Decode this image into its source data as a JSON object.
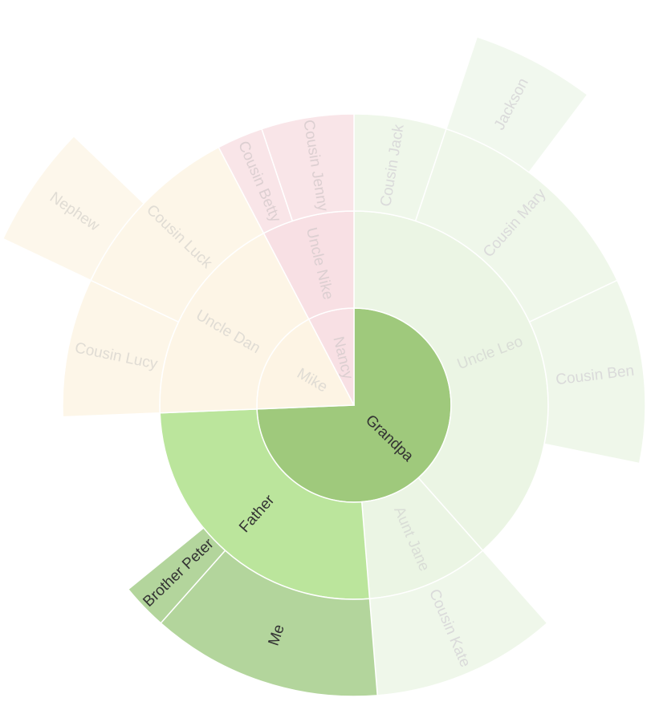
{
  "chart_data": {
    "type": "sunburst",
    "data": [
      {
        "name": "Grandpa",
        "value": 29,
        "color": "#9fc97c",
        "label_color": "#333333",
        "children": [
          {
            "name": "Uncle Leo",
            "value": 15,
            "color": "#ebf5e4",
            "label_color": "#d9ddd6",
            "children": [
              {
                "name": "Cousin Jack",
                "value": 2,
                "color": "#eff7ea",
                "label_color": "#dadada"
              },
              {
                "name": "Cousin Mary",
                "value": 5,
                "color": "#eff7ea",
                "label_color": "#dadada",
                "children": [
                  {
                    "name": "Jackson",
                    "value": 2,
                    "color": "#f1f8ee",
                    "label_color": "#dadada"
                  }
                ]
              },
              {
                "name": "Cousin Ben",
                "value": 4,
                "color": "#eff7ea",
                "label_color": "#dadada"
              }
            ]
          },
          {
            "name": "Aunt Jane",
            "value": 4,
            "color": "#ebf5e4",
            "label_color": "#d9ddd6",
            "children": [
              {
                "name": "Cousin Kate",
                "value": 4,
                "color": "#eff7ea",
                "label_color": "#dadada"
              }
            ]
          },
          {
            "name": "Father",
            "value": 10,
            "color": "#bbe59c",
            "label_color": "#333333",
            "children": [
              {
                "name": "Me",
                "value": 5,
                "color": "#b3d59c",
                "label_color": "#333333"
              },
              {
                "name": "Brother Peter",
                "value": 1,
                "color": "#b3d59c",
                "label_color": "#333333"
              }
            ]
          }
        ]
      },
      {
        "name": "Mike",
        "value": 7,
        "color": "#fdf4e4",
        "label_color": "#e0dcd4",
        "children": [
          {
            "name": "Uncle Dan",
            "value": 7,
            "color": "#fdf5e6",
            "label_color": "#e0dcd4",
            "children": [
              {
                "name": "Cousin Lucy",
                "value": 3,
                "color": "#fdf6e8",
                "label_color": "#e0dcd4"
              },
              {
                "name": "Cousin Luck",
                "value": 4,
                "color": "#fdf6e8",
                "label_color": "#e0dcd4",
                "children": [
                  {
                    "name": "Nephew",
                    "value": 2,
                    "color": "#fdf7eb",
                    "label_color": "#e0dcd4"
                  }
                ]
              }
            ]
          }
        ]
      },
      {
        "name": "Nancy",
        "value": 3,
        "color": "#f8e0e4",
        "label_color": "#dccfd1",
        "children": [
          {
            "name": "Uncle Nike",
            "value": 3,
            "color": "#f8e0e4",
            "label_color": "#dccfd1",
            "children": [
              {
                "name": "Cousin Betty",
                "value": 1,
                "color": "#f9e5e8",
                "label_color": "#dccfd1"
              },
              {
                "name": "Cousin Jenny",
                "value": 2,
                "color": "#f9e5e8",
                "label_color": "#dccfd1"
              }
            ]
          }
        ]
      }
    ]
  }
}
